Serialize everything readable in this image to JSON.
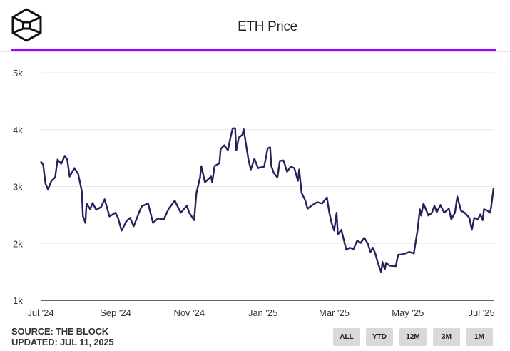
{
  "header": {
    "title": "ETH Price",
    "logo": "the-block-cube-logo",
    "accent_color": "#a100ff"
  },
  "footer": {
    "source": "SOURCE: THE BLOCK",
    "updated": "UPDATED: JUL 11, 2025"
  },
  "range_buttons": [
    {
      "label": "ALL"
    },
    {
      "label": "YTD"
    },
    {
      "label": "12M"
    },
    {
      "label": "3M"
    },
    {
      "label": "1M"
    }
  ],
  "chart_data": {
    "type": "line",
    "title": "ETH Price",
    "line_color": "#27215e",
    "grid": true,
    "xlim": [
      "2024-07-01",
      "2025-07-11"
    ],
    "ylim": [
      1000,
      5000
    ],
    "yticks": [
      {
        "value": 1000,
        "label": "1k"
      },
      {
        "value": 2000,
        "label": "2k"
      },
      {
        "value": 3000,
        "label": "3k"
      },
      {
        "value": 4000,
        "label": "4k"
      },
      {
        "value": 5000,
        "label": "5k"
      }
    ],
    "xticks": [
      {
        "date": "2024-07-01",
        "label": "Jul '24"
      },
      {
        "date": "2024-09-01",
        "label": "Sep '24"
      },
      {
        "date": "2024-11-01",
        "label": "Nov '24"
      },
      {
        "date": "2025-01-01",
        "label": "Jan '25"
      },
      {
        "date": "2025-03-01",
        "label": "Mar '25"
      },
      {
        "date": "2025-05-01",
        "label": "May '25"
      },
      {
        "date": "2025-07-01",
        "label": "Jul '25"
      }
    ],
    "series": [
      {
        "points": [
          [
            "2024-07-01",
            3440
          ],
          [
            "2024-07-03",
            3390
          ],
          [
            "2024-07-05",
            3050
          ],
          [
            "2024-07-07",
            2950
          ],
          [
            "2024-07-10",
            3100
          ],
          [
            "2024-07-13",
            3160
          ],
          [
            "2024-07-15",
            3475
          ],
          [
            "2024-07-18",
            3400
          ],
          [
            "2024-07-21",
            3540
          ],
          [
            "2024-07-23",
            3475
          ],
          [
            "2024-07-25",
            3175
          ],
          [
            "2024-07-29",
            3325
          ],
          [
            "2024-08-01",
            3225
          ],
          [
            "2024-08-04",
            2925
          ],
          [
            "2024-08-05",
            2475
          ],
          [
            "2024-08-07",
            2360
          ],
          [
            "2024-08-08",
            2700
          ],
          [
            "2024-08-11",
            2600
          ],
          [
            "2024-08-13",
            2710
          ],
          [
            "2024-08-16",
            2590
          ],
          [
            "2024-08-20",
            2640
          ],
          [
            "2024-08-23",
            2775
          ],
          [
            "2024-08-27",
            2475
          ],
          [
            "2024-09-01",
            2540
          ],
          [
            "2024-09-03",
            2450
          ],
          [
            "2024-09-06",
            2225
          ],
          [
            "2024-09-10",
            2390
          ],
          [
            "2024-09-13",
            2450
          ],
          [
            "2024-09-16",
            2300
          ],
          [
            "2024-09-21",
            2575
          ],
          [
            "2024-09-23",
            2660
          ],
          [
            "2024-09-28",
            2700
          ],
          [
            "2024-10-02",
            2360
          ],
          [
            "2024-10-06",
            2440
          ],
          [
            "2024-10-11",
            2425
          ],
          [
            "2024-10-15",
            2610
          ],
          [
            "2024-10-20",
            2750
          ],
          [
            "2024-10-25",
            2540
          ],
          [
            "2024-10-30",
            2660
          ],
          [
            "2024-11-01",
            2540
          ],
          [
            "2024-11-05",
            2410
          ],
          [
            "2024-11-07",
            2890
          ],
          [
            "2024-11-10",
            3160
          ],
          [
            "2024-11-11",
            3360
          ],
          [
            "2024-11-14",
            3075
          ],
          [
            "2024-11-19",
            3175
          ],
          [
            "2024-11-20",
            3075
          ],
          [
            "2024-11-22",
            3360
          ],
          [
            "2024-11-26",
            3410
          ],
          [
            "2024-11-27",
            3660
          ],
          [
            "2024-11-30",
            3725
          ],
          [
            "2024-12-03",
            3640
          ],
          [
            "2024-12-05",
            3850
          ],
          [
            "2024-12-07",
            4025
          ],
          [
            "2024-12-09",
            4025
          ],
          [
            "2024-12-10",
            3640
          ],
          [
            "2024-12-12",
            3860
          ],
          [
            "2024-12-15",
            3910
          ],
          [
            "2024-12-16",
            4010
          ],
          [
            "2024-12-20",
            3475
          ],
          [
            "2024-12-22",
            3300
          ],
          [
            "2024-12-25",
            3490
          ],
          [
            "2024-12-28",
            3325
          ],
          [
            "2025-01-02",
            3350
          ],
          [
            "2025-01-05",
            3675
          ],
          [
            "2025-01-07",
            3690
          ],
          [
            "2025-01-08",
            3360
          ],
          [
            "2025-01-10",
            3240
          ],
          [
            "2025-01-13",
            3160
          ],
          [
            "2025-01-15",
            3450
          ],
          [
            "2025-01-18",
            3460
          ],
          [
            "2025-01-21",
            3260
          ],
          [
            "2025-01-24",
            3350
          ],
          [
            "2025-01-27",
            3325
          ],
          [
            "2025-01-30",
            3100
          ],
          [
            "2025-01-31",
            3300
          ],
          [
            "2025-02-02",
            2890
          ],
          [
            "2025-02-05",
            2760
          ],
          [
            "2025-02-07",
            2610
          ],
          [
            "2025-02-11",
            2675
          ],
          [
            "2025-02-15",
            2725
          ],
          [
            "2025-02-19",
            2700
          ],
          [
            "2025-02-23",
            2810
          ],
          [
            "2025-02-25",
            2540
          ],
          [
            "2025-02-27",
            2350
          ],
          [
            "2025-03-01",
            2225
          ],
          [
            "2025-03-03",
            2540
          ],
          [
            "2025-03-04",
            2160
          ],
          [
            "2025-03-07",
            2240
          ],
          [
            "2025-03-11",
            1890
          ],
          [
            "2025-03-14",
            1925
          ],
          [
            "2025-03-17",
            1900
          ],
          [
            "2025-03-20",
            2050
          ],
          [
            "2025-03-23",
            2010
          ],
          [
            "2025-03-26",
            2100
          ],
          [
            "2025-03-29",
            1990
          ],
          [
            "2025-03-31",
            1850
          ],
          [
            "2025-04-02",
            1925
          ],
          [
            "2025-04-04",
            1825
          ],
          [
            "2025-04-06",
            1675
          ],
          [
            "2025-04-09",
            1490
          ],
          [
            "2025-04-10",
            1675
          ],
          [
            "2025-04-12",
            1550
          ],
          [
            "2025-04-13",
            1660
          ],
          [
            "2025-04-16",
            1610
          ],
          [
            "2025-04-21",
            1600
          ],
          [
            "2025-04-23",
            1800
          ],
          [
            "2025-04-27",
            1810
          ],
          [
            "2025-05-02",
            1850
          ],
          [
            "2025-05-06",
            1825
          ],
          [
            "2025-05-09",
            2225
          ],
          [
            "2025-05-11",
            2600
          ],
          [
            "2025-05-12",
            2490
          ],
          [
            "2025-05-14",
            2700
          ],
          [
            "2025-05-18",
            2490
          ],
          [
            "2025-05-21",
            2540
          ],
          [
            "2025-05-23",
            2660
          ],
          [
            "2025-05-25",
            2550
          ],
          [
            "2025-05-28",
            2675
          ],
          [
            "2025-05-31",
            2540
          ],
          [
            "2025-06-04",
            2610
          ],
          [
            "2025-06-06",
            2425
          ],
          [
            "2025-06-09",
            2540
          ],
          [
            "2025-06-11",
            2825
          ],
          [
            "2025-06-14",
            2575
          ],
          [
            "2025-06-17",
            2540
          ],
          [
            "2025-06-21",
            2450
          ],
          [
            "2025-06-23",
            2240
          ],
          [
            "2025-06-25",
            2450
          ],
          [
            "2025-06-28",
            2425
          ],
          [
            "2025-06-30",
            2510
          ],
          [
            "2025-07-02",
            2410
          ],
          [
            "2025-07-03",
            2600
          ],
          [
            "2025-07-06",
            2575
          ],
          [
            "2025-07-08",
            2540
          ],
          [
            "2025-07-09",
            2640
          ],
          [
            "2025-07-11",
            2975
          ]
        ]
      }
    ]
  }
}
